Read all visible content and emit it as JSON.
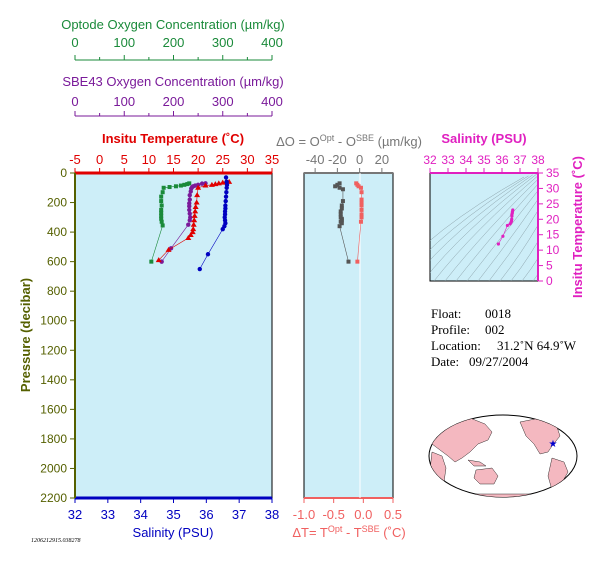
{
  "colors": {
    "optode": "#1a8a3a",
    "sbe": "#7a1a9a",
    "temperature": "#e00000",
    "salinity": "#0000c0",
    "pressure": "#556000",
    "delta_o": "#777777",
    "delta_t": "#f06060",
    "magenta": "#e020c0",
    "panel_bg": "#cdeef8",
    "land": "#f4b8c0"
  },
  "top_axes": {
    "optode": {
      "title": "Optode Oxygen Concentration (µm/kg)",
      "ticks": [
        "0",
        "100",
        "200",
        "300",
        "400"
      ]
    },
    "sbe43": {
      "title": "SBE43 Oxygen Concentration (µm/kg)",
      "ticks": [
        "0",
        "100",
        "200",
        "300",
        "400"
      ]
    }
  },
  "main_panel": {
    "temp_title": "Insitu Temperature (˚C)",
    "temp_ticks": [
      "-5",
      "0",
      "5",
      "10",
      "15",
      "20",
      "25",
      "30",
      "35"
    ],
    "sal_title": "Salinity (PSU)",
    "sal_ticks": [
      "32",
      "33",
      "34",
      "35",
      "36",
      "37",
      "38"
    ],
    "pressure_title": "Pressure (decibar)",
    "pressure_ticks": [
      "0",
      "200",
      "400",
      "600",
      "800",
      "1000",
      "1200",
      "1400",
      "1600",
      "1800",
      "2000",
      "2200"
    ]
  },
  "delta_panel": {
    "top_title_prefix": "ΔO = O",
    "top_title_sup1": "Opt",
    "top_title_mid": " - O",
    "top_title_sup2": "SBE",
    "top_title_suffix": " (µm/kg)",
    "top_ticks": [
      "-40",
      "-20",
      "0",
      "20"
    ],
    "bottom_title_prefix": "ΔT= T",
    "bottom_title_sup1": "Opt",
    "bottom_title_mid": " - T",
    "bottom_title_sup2": "SBE",
    "bottom_title_suffix": " (˚C)",
    "bottom_ticks": [
      "-1.0",
      "-0.5",
      "0.0",
      "0.5"
    ]
  },
  "ts_panel": {
    "sal_title": "Salinity (PSU)",
    "sal_ticks": [
      "32",
      "33",
      "34",
      "35",
      "36",
      "37",
      "38"
    ],
    "temp_title": "Insitu Temperature (˚C)",
    "temp_ticks": [
      "0",
      "5",
      "10",
      "15",
      "20",
      "25",
      "30",
      "35"
    ]
  },
  "info": {
    "float_label": "Float:",
    "float_value": "0018",
    "profile_label": "Profile:",
    "profile_value": "002",
    "location_label": "Location:",
    "location_value": "31.2˚N  64.9˚W",
    "date_label": "Date:",
    "date_value": "09/27/2004"
  },
  "footer_id": "1206212915.038278",
  "chart_data": [
    {
      "type": "scatter",
      "name": "profile",
      "ylim": [
        2200,
        0
      ],
      "xlim_temperature": [
        -5,
        35
      ],
      "xlim_salinity": [
        32,
        38
      ],
      "xlim_oxygen": [
        0,
        400
      ],
      "series": [
        {
          "name": "Optode Oxygen",
          "x": [
            232,
            228,
            222,
            215,
            205,
            192,
            180,
            178,
            175,
            175,
            176,
            175,
            175,
            175,
            175,
            176,
            178,
            155
          ],
          "y": [
            70,
            75,
            80,
            85,
            90,
            95,
            100,
            130,
            160,
            190,
            220,
            250,
            270,
            290,
            310,
            330,
            355,
            600
          ]
        },
        {
          "name": "SBE43 Oxygen",
          "x": [
            265,
            258,
            250,
            244,
            240,
            238,
            236,
            235,
            233,
            233,
            232,
            232,
            232,
            233,
            234,
            233,
            230,
            195,
            176
          ],
          "y": [
            70,
            72,
            80,
            85,
            90,
            95,
            105,
            125,
            150,
            180,
            205,
            225,
            250,
            275,
            300,
            320,
            350,
            510,
            600
          ]
        },
        {
          "name": "Temperature",
          "x": [
            26.3,
            25.6,
            25.0,
            24.2,
            23.5,
            22.8,
            21.5,
            20.0,
            19.8,
            19.7,
            19.5,
            19.4,
            19.3,
            19.2,
            19.1,
            19.0,
            18.9,
            18.5,
            18.0,
            14.0,
            12.0
          ],
          "y": [
            60,
            62,
            65,
            70,
            75,
            80,
            85,
            100,
            150,
            200,
            230,
            260,
            290,
            320,
            350,
            380,
            400,
            420,
            440,
            520,
            590
          ]
        },
        {
          "name": "Salinity",
          "x": [
            36.6,
            36.62,
            36.63,
            36.62,
            36.61,
            36.6,
            36.59,
            36.58,
            36.58,
            36.57,
            36.57,
            36.56,
            36.57,
            36.58,
            36.55,
            36.5,
            36.05,
            35.8
          ],
          "y": [
            30,
            60,
            80,
            100,
            130,
            160,
            190,
            220,
            240,
            260,
            280,
            300,
            320,
            340,
            360,
            380,
            550,
            650
          ]
        }
      ]
    },
    {
      "type": "scatter",
      "name": "delta",
      "xlim_delta_o": [
        -50,
        30
      ],
      "xlim_delta_t": [
        -1.0,
        0.5
      ],
      "ylim": [
        2200,
        0
      ],
      "series": [
        {
          "name": "Delta O",
          "x": [
            -18,
            -20,
            -22,
            -18,
            -15,
            -15,
            -16,
            -16,
            -17,
            -17,
            -17,
            -16,
            -16,
            -17,
            -16,
            -18,
            -10
          ],
          "y": [
            70,
            80,
            90,
            100,
            110,
            190,
            220,
            240,
            260,
            280,
            300,
            310,
            320,
            330,
            340,
            360,
            600
          ]
        },
        {
          "name": "Delta T",
          "x": [
            -0.12,
            -0.1,
            -0.08,
            -0.04,
            -0.03,
            -0.03,
            -0.03,
            -0.03,
            -0.03,
            -0.03,
            -0.03,
            -0.04,
            -0.1
          ],
          "y": [
            70,
            80,
            90,
            100,
            130,
            180,
            200,
            220,
            250,
            280,
            300,
            330,
            600
          ]
        }
      ]
    },
    {
      "type": "scatter",
      "name": "ts",
      "xlim": [
        32,
        38
      ],
      "ylim": [
        0,
        35
      ],
      "series": [
        {
          "name": "TS",
          "x": [
            36.6,
            36.58,
            36.57,
            36.55,
            36.55,
            36.54,
            36.53,
            36.5,
            36.45,
            36.3,
            36.05,
            35.8
          ],
          "y": [
            23.0,
            22.5,
            22.0,
            21.5,
            21.0,
            20.0,
            19.5,
            19.0,
            18.5,
            18.0,
            14.5,
            12.0
          ]
        }
      ]
    }
  ]
}
